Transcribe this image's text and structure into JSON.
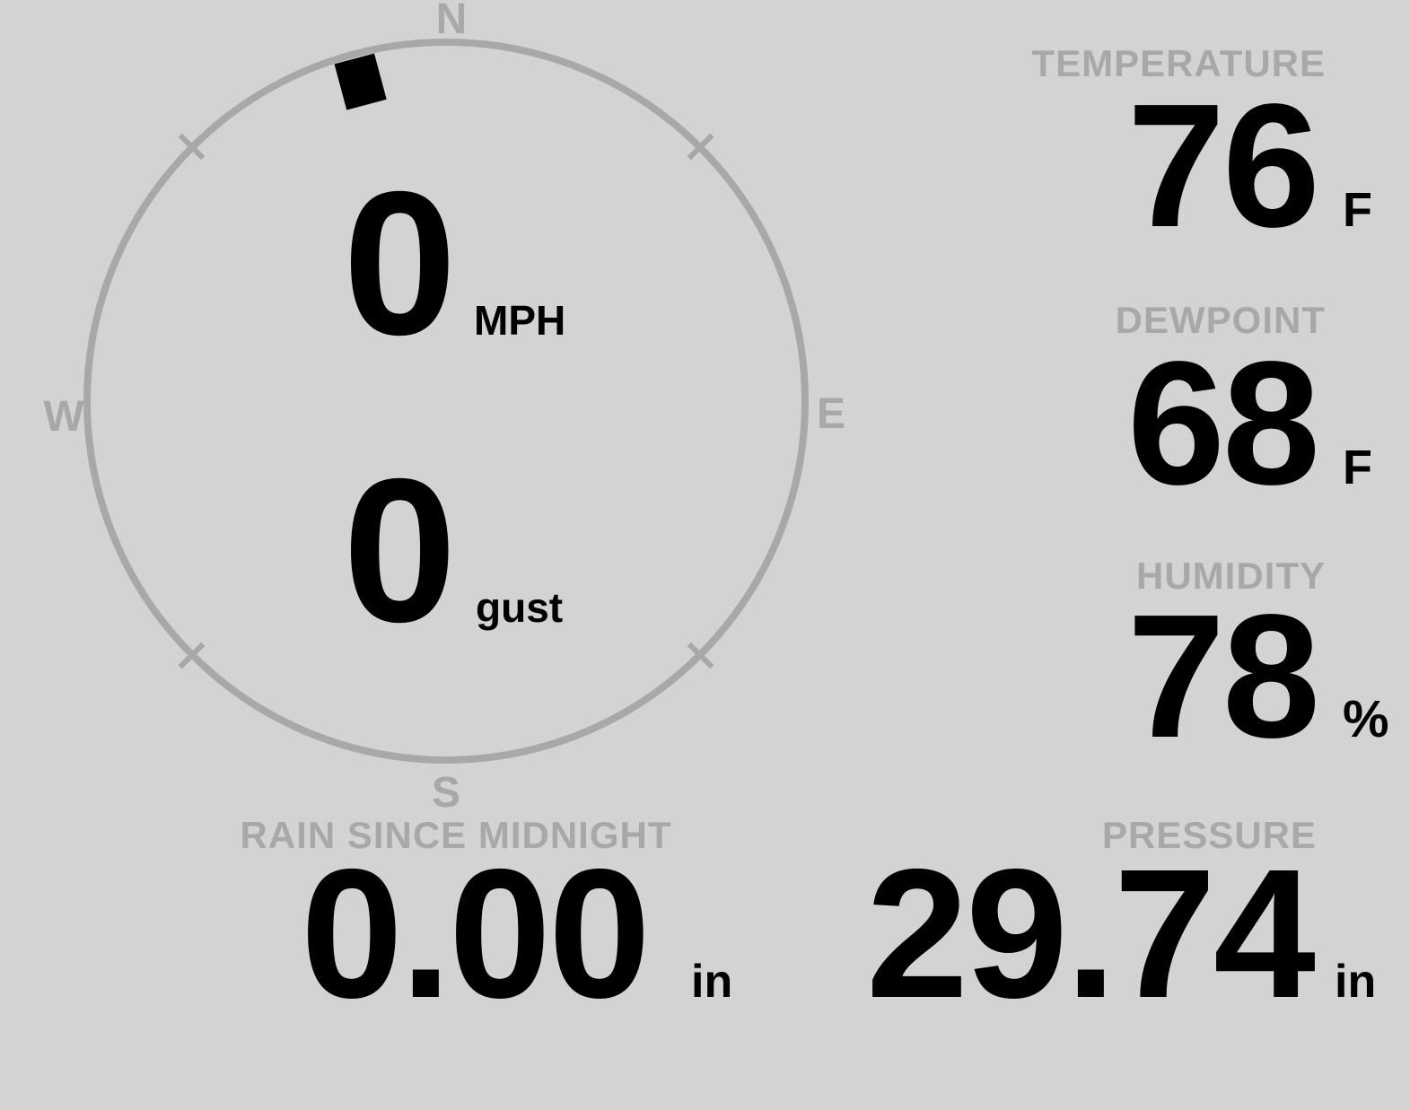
{
  "colors": {
    "background": "#d3d3d3",
    "muted_gray": "#a8a8a8",
    "ink_black": "#000000"
  },
  "compass": {
    "cardinals": {
      "north": "N",
      "east": "E",
      "south": "S",
      "west": "W"
    },
    "wind_direction_deg": 345,
    "wind_speed": {
      "value": "0",
      "unit": "MPH"
    },
    "wind_gust": {
      "value": "0",
      "unit": "gust"
    }
  },
  "metrics": {
    "temperature": {
      "label": "TEMPERATURE",
      "value": "76",
      "unit": "F"
    },
    "dewpoint": {
      "label": "DEWPOINT",
      "value": "68",
      "unit": "F"
    },
    "humidity": {
      "label": "HUMIDITY",
      "value": "78",
      "unit": "%"
    },
    "rain": {
      "label": "RAIN SINCE MIDNIGHT",
      "value": "0.00",
      "unit": "in"
    },
    "pressure": {
      "label": "PRESSURE",
      "value": "29.74",
      "unit": "in"
    }
  }
}
